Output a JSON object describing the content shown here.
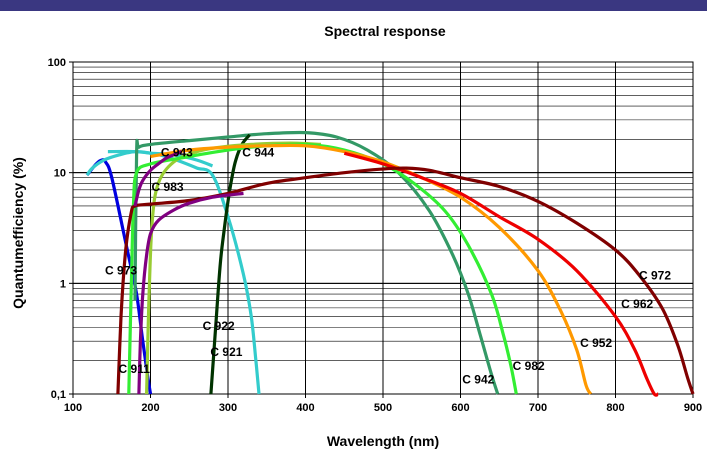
{
  "header_bar_color": "#3a3781",
  "chart_data": {
    "type": "line",
    "title": "Spectral response",
    "xlabel": "Wavelength (nm)",
    "ylabel": "Quantumefficiency (%)",
    "xlim": [
      100,
      900
    ],
    "ylim": [
      0.1,
      100
    ],
    "yscale": "log",
    "grid": true,
    "legend": "none",
    "x_ticks": [
      {
        "value": 100,
        "label": "100"
      },
      {
        "value": 200,
        "label": "200"
      },
      {
        "value": 300,
        "label": "300"
      },
      {
        "value": 400,
        "label": "400"
      },
      {
        "value": 500,
        "label": "500"
      },
      {
        "value": 600,
        "label": "600"
      },
      {
        "value": 700,
        "label": "700"
      },
      {
        "value": 800,
        "label": "800"
      },
      {
        "value": 900,
        "label": "900"
      }
    ],
    "y_ticks": [
      {
        "value": 0.1,
        "label": "0,1"
      },
      {
        "value": 1,
        "label": "1"
      },
      {
        "value": 10,
        "label": "10"
      },
      {
        "value": 100,
        "label": "100"
      }
    ],
    "series": [
      {
        "name": "C 911",
        "color": "#0000e0",
        "x": [
          118,
          130,
          137,
          142,
          150,
          170,
          182,
          190,
          196,
          200
        ],
        "y": [
          9.5,
          12,
          13,
          12.5,
          9,
          2,
          0.8,
          0.3,
          0.15,
          0.1
        ],
        "label_pos": [
          179,
          0.155
        ]
      },
      {
        "name": "C 921",
        "color": "#33cccc",
        "x": [
          118,
          125,
          140,
          160,
          180,
          200,
          220,
          240,
          260,
          280,
          300,
          320,
          330,
          336,
          340
        ],
        "y": [
          9.5,
          11,
          13,
          14.5,
          15.5,
          15,
          14,
          12.5,
          11,
          9.5,
          4,
          1.2,
          0.5,
          0.2,
          0.1
        ],
        "label_pos": [
          298,
          0.22
        ]
      },
      {
        "name": "C 922",
        "color": "#33cccc",
        "x": [
          145,
          180,
          200,
          230,
          260,
          280
        ],
        "y": [
          15.5,
          15.5,
          15,
          14.5,
          13,
          11.5
        ],
        "label_pos": [
          288,
          0.38
        ]
      },
      {
        "name": "C 942",
        "color": "#339966",
        "x": [
          180,
          182,
          185,
          200,
          250,
          300,
          350,
          400,
          440,
          480,
          520,
          560,
          590,
          610,
          625,
          640,
          648
        ],
        "y": [
          0.7,
          15,
          17,
          18,
          19.5,
          21,
          22.5,
          23,
          21,
          16,
          10,
          4.5,
          1.8,
          0.8,
          0.35,
          0.15,
          0.1
        ],
        "label_pos": [
          623,
          0.125
        ]
      },
      {
        "name": "C 944",
        "color": "#003300",
        "x": [
          278,
          285,
          290,
          295,
          300,
          305,
          310,
          318,
          328
        ],
        "y": [
          0.1,
          0.5,
          1.5,
          3,
          5.5,
          9,
          13,
          18,
          22
        ],
        "label_pos": [
          339,
          14
        ]
      },
      {
        "name": "C 943",
        "color": "#99cc33",
        "x": [
          195,
          198,
          202,
          210,
          230,
          260,
          290,
          330,
          380,
          420
        ],
        "y": [
          0.1,
          0.7,
          3.5,
          8,
          12.5,
          15.5,
          17,
          18,
          18.5,
          18
        ],
        "label_pos": [
          234,
          14
        ]
      },
      {
        "name": "C 982",
        "color": "#33ee33",
        "x": [
          172,
          175,
          178,
          182,
          200,
          250,
          300,
          350,
          400,
          450,
          500,
          540,
          580,
          610,
          640,
          655,
          665,
          672
        ],
        "y": [
          0.1,
          0.8,
          5,
          10,
          12,
          14,
          16,
          17.5,
          18,
          16,
          12,
          8,
          4.5,
          2.2,
          0.8,
          0.35,
          0.18,
          0.1
        ],
        "label_pos": [
          688,
          0.165
        ]
      },
      {
        "name": "C 952",
        "color": "#ff9900",
        "x": [
          200,
          250,
          300,
          350,
          400,
          450,
          500,
          550,
          600,
          650,
          700,
          730,
          750,
          762,
          768
        ],
        "y": [
          14,
          16,
          17,
          17.5,
          17.5,
          15.5,
          12.5,
          9,
          6,
          3.2,
          1.3,
          0.55,
          0.25,
          0.12,
          0.1
        ],
        "label_pos": [
          775,
          0.265
        ]
      },
      {
        "name": "C 962",
        "color": "#ee0000",
        "x": [
          450,
          500,
          550,
          600,
          650,
          700,
          750,
          800,
          825,
          840,
          850,
          855
        ],
        "y": [
          15,
          12,
          9,
          6.5,
          4,
          2.5,
          1.3,
          0.5,
          0.25,
          0.14,
          0.1,
          0.1
        ],
        "label_pos": [
          828,
          0.6
        ]
      },
      {
        "name": "C 972",
        "color": "#800000",
        "x": [
          158,
          162,
          168,
          175,
          180,
          200,
          250,
          300,
          350,
          400,
          450,
          500,
          530,
          560,
          600,
          650,
          700,
          750,
          800,
          830,
          860,
          880,
          893,
          900
        ],
        "y": [
          0.1,
          0.5,
          2,
          4.3,
          5,
          5.2,
          5.6,
          6.5,
          8,
          9,
          10,
          10.8,
          11,
          10.5,
          9,
          7.5,
          5.5,
          3.5,
          2,
          1.2,
          0.6,
          0.28,
          0.14,
          0.1
        ],
        "label_pos": [
          851,
          1.08
        ]
      },
      {
        "name": "C 973",
        "color": "#800080",
        "x": [
          185,
          187,
          190,
          195,
          200,
          210,
          230,
          250,
          280,
          320
        ],
        "y": [
          0.1,
          0.3,
          0.8,
          1.8,
          2.8,
          3.7,
          4.6,
          5.3,
          6,
          6.5
        ],
        "label_pos": [
          162,
          1.2
        ]
      },
      {
        "name": "C 983",
        "color": "#800080",
        "x": [
          180,
          185,
          190,
          200,
          210,
          220,
          230,
          240
        ],
        "y": [
          5,
          7,
          8.5,
          10.5,
          12,
          13.5,
          14.5,
          15.5
        ],
        "label_pos": [
          222,
          6.8
        ]
      }
    ]
  }
}
